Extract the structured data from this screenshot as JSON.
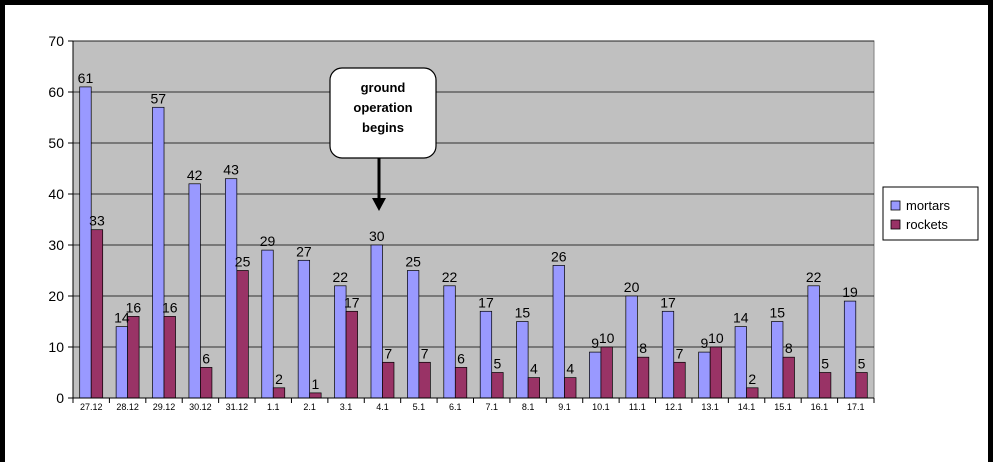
{
  "chart_data": {
    "type": "bar",
    "categories": [
      "27.12",
      "28.12",
      "29.12",
      "30.12",
      "31.12",
      "1.1",
      "2.1",
      "3.1",
      "4.1",
      "5.1",
      "6.1",
      "7.1",
      "8.1",
      "9.1",
      "10.1",
      "11.1",
      "12.1",
      "13.1",
      "14.1",
      "15.1",
      "16.1",
      "17.1"
    ],
    "series": [
      {
        "name": "mortars",
        "color": "#9999ff",
        "values": [
          61,
          14,
          57,
          42,
          43,
          29,
          27,
          22,
          30,
          25,
          22,
          17,
          15,
          26,
          9,
          20,
          17,
          9,
          14,
          15,
          22,
          19
        ]
      },
      {
        "name": "rockets",
        "color": "#993366",
        "values": [
          33,
          16,
          16,
          6,
          25,
          2,
          1,
          17,
          7,
          7,
          6,
          5,
          4,
          4,
          10,
          8,
          7,
          10,
          2,
          8,
          5,
          5
        ]
      }
    ],
    "ylim": [
      0,
      70
    ],
    "yticks": [
      0,
      10,
      20,
      30,
      40,
      50,
      60,
      70
    ],
    "grid": true,
    "plot_background": "#c0c0c0",
    "legend_position": "right",
    "annotation": {
      "lines": [
        "ground",
        "operation",
        "begins"
      ],
      "points_to_category": "4.1"
    }
  }
}
